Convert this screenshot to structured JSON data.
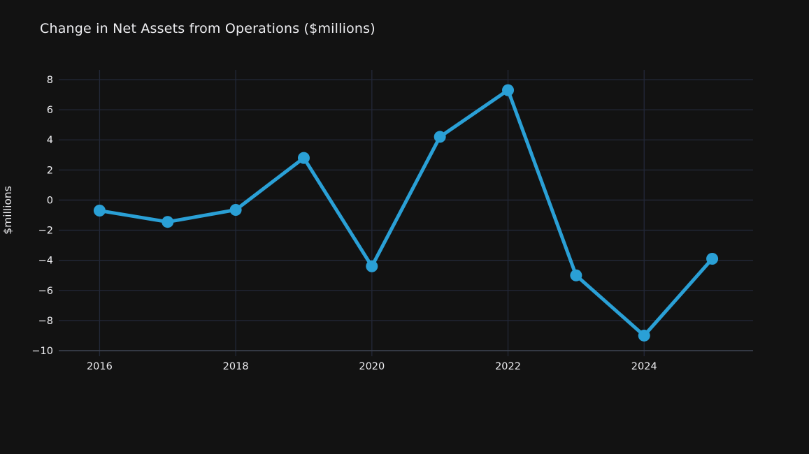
{
  "chart_data": {
    "type": "line",
    "title": "Change in Net Assets from Operations ($millions)",
    "xlabel": "",
    "ylabel": "$millions",
    "x": [
      2016,
      2017,
      2018,
      2019,
      2020,
      2021,
      2022,
      2023,
      2024,
      2025
    ],
    "series": [
      {
        "name": "Change in net assets from operations",
        "values": [
          -0.7,
          -1.45,
          -0.65,
          2.8,
          -4.4,
          4.2,
          7.3,
          -5.0,
          -9.0,
          -3.9
        ]
      }
    ],
    "xticks": [
      2016,
      2018,
      2020,
      2022,
      2024
    ],
    "yticks": [
      8,
      6,
      4,
      2,
      0,
      -2,
      -4,
      -6,
      -8,
      -10
    ],
    "xlim": [
      2015.4,
      2025.6
    ],
    "ylim": [
      -10,
      8.65
    ],
    "grid": true,
    "legend_visible": false,
    "line_color": "#2aa0d6",
    "marker": "circle",
    "background_color": "#121212",
    "grid_color": "#232838",
    "axis_line_color": "#3e4552",
    "text_color": "#ededf0"
  }
}
